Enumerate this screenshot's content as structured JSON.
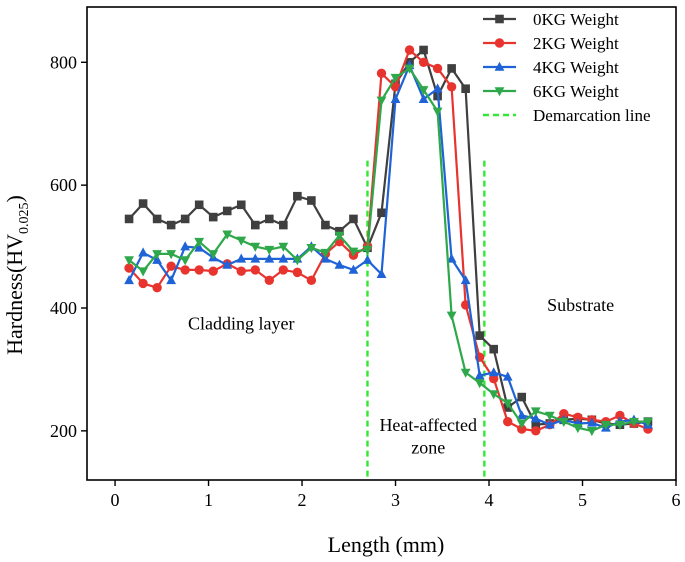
{
  "chart_data": {
    "type": "line",
    "title": "",
    "xlabel": "Length (mm)",
    "ylabel_main": "Hardness(HV",
    "ylabel_sub": "0.025",
    "ylabel_close": ")",
    "xlim": [
      -0.3,
      6
    ],
    "ylim": [
      120,
      890
    ],
    "xticks": [
      0,
      1,
      2,
      3,
      4,
      5,
      6
    ],
    "yticks": [
      200,
      400,
      600,
      800
    ],
    "xtick_labels": [
      "0",
      "1",
      "2",
      "3",
      "4",
      "5",
      "6"
    ],
    "ytick_labels": [
      "200",
      "400",
      "600",
      "800"
    ],
    "grid": false,
    "legend_position": "top-right",
    "series": [
      {
        "name": "0KG Weight",
        "color": "#3f3f3f",
        "marker": "square",
        "x": [
          0.15,
          0.3,
          0.45,
          0.6,
          0.75,
          0.9,
          1.05,
          1.2,
          1.35,
          1.5,
          1.65,
          1.8,
          1.95,
          2.1,
          2.25,
          2.4,
          2.55,
          2.7,
          2.85,
          3.0,
          3.15,
          3.3,
          3.45,
          3.6,
          3.75,
          3.9,
          4.05,
          4.2,
          4.35,
          4.5,
          4.65,
          4.8,
          4.95,
          5.1,
          5.25,
          5.4,
          5.55,
          5.7
        ],
        "y": [
          545,
          570,
          545,
          535,
          545,
          568,
          548,
          558,
          568,
          535,
          545,
          535,
          582,
          575,
          535,
          525,
          545,
          498,
          555,
          765,
          800,
          820,
          745,
          790,
          757,
          355,
          333,
          238,
          255,
          210,
          212,
          218,
          220,
          218,
          212,
          210,
          212,
          215
        ]
      },
      {
        "name": "2KG Weight",
        "color": "#e8342f",
        "marker": "circle",
        "x": [
          0.15,
          0.3,
          0.45,
          0.6,
          0.75,
          0.9,
          1.05,
          1.2,
          1.35,
          1.5,
          1.65,
          1.8,
          1.95,
          2.1,
          2.25,
          2.4,
          2.55,
          2.7,
          2.85,
          3.0,
          3.15,
          3.3,
          3.45,
          3.6,
          3.75,
          3.9,
          4.05,
          4.2,
          4.35,
          4.5,
          4.65,
          4.8,
          4.95,
          5.1,
          5.25,
          5.4,
          5.55,
          5.7
        ],
        "y": [
          465,
          440,
          433,
          468,
          462,
          462,
          460,
          472,
          460,
          462,
          445,
          462,
          458,
          445,
          488,
          508,
          486,
          500,
          782,
          760,
          820,
          800,
          790,
          760,
          405,
          320,
          285,
          215,
          203,
          200,
          210,
          228,
          222,
          218,
          215,
          225,
          212,
          203
        ]
      },
      {
        "name": "4KG Weight",
        "color": "#1f63d6",
        "marker": "triangle-up",
        "x": [
          0.15,
          0.3,
          0.45,
          0.6,
          0.75,
          0.9,
          1.05,
          1.2,
          1.35,
          1.5,
          1.65,
          1.8,
          1.95,
          2.1,
          2.25,
          2.4,
          2.55,
          2.7,
          2.85,
          3.0,
          3.15,
          3.3,
          3.45,
          3.6,
          3.75,
          3.9,
          4.05,
          4.2,
          4.35,
          4.5,
          4.65,
          4.8,
          4.95,
          5.1,
          5.25,
          5.4,
          5.55,
          5.7
        ],
        "y": [
          445,
          490,
          478,
          445,
          500,
          498,
          482,
          470,
          480,
          480,
          480,
          480,
          480,
          500,
          480,
          470,
          462,
          478,
          455,
          740,
          795,
          740,
          757,
          480,
          445,
          290,
          295,
          288,
          225,
          220,
          210,
          218,
          212,
          213,
          205,
          215,
          218,
          210
        ]
      },
      {
        "name": "6KG Weight",
        "color": "#2ea84a",
        "marker": "triangle-down",
        "x": [
          0.15,
          0.3,
          0.45,
          0.6,
          0.75,
          0.9,
          1.05,
          1.2,
          1.35,
          1.5,
          1.65,
          1.8,
          1.95,
          2.1,
          2.25,
          2.4,
          2.55,
          2.7,
          2.85,
          3.0,
          3.15,
          3.3,
          3.45,
          3.6,
          3.75,
          3.9,
          4.05,
          4.2,
          4.35,
          4.5,
          4.65,
          4.8,
          4.95,
          5.1,
          5.25,
          5.4,
          5.55,
          5.7
        ],
        "y": [
          478,
          460,
          488,
          488,
          478,
          508,
          488,
          520,
          510,
          500,
          495,
          500,
          478,
          498,
          490,
          518,
          492,
          495,
          738,
          775,
          790,
          755,
          720,
          388,
          295,
          278,
          260,
          245,
          212,
          232,
          225,
          215,
          205,
          200,
          210,
          210,
          215,
          215
        ]
      }
    ],
    "demarcation": {
      "name": "Demarcation line",
      "color": "#33e833",
      "x_positions": [
        2.7,
        3.95
      ],
      "y_range": [
        120,
        640
      ]
    },
    "annotations": [
      {
        "text": "Cladding layer",
        "x": 1.35,
        "y": 365
      },
      {
        "text": "Heat-affected",
        "x": 3.35,
        "y": 200
      },
      {
        "text": "zone",
        "x": 3.35,
        "y": 163
      },
      {
        "text": "Substrate",
        "x": 4.98,
        "y": 395
      }
    ]
  }
}
